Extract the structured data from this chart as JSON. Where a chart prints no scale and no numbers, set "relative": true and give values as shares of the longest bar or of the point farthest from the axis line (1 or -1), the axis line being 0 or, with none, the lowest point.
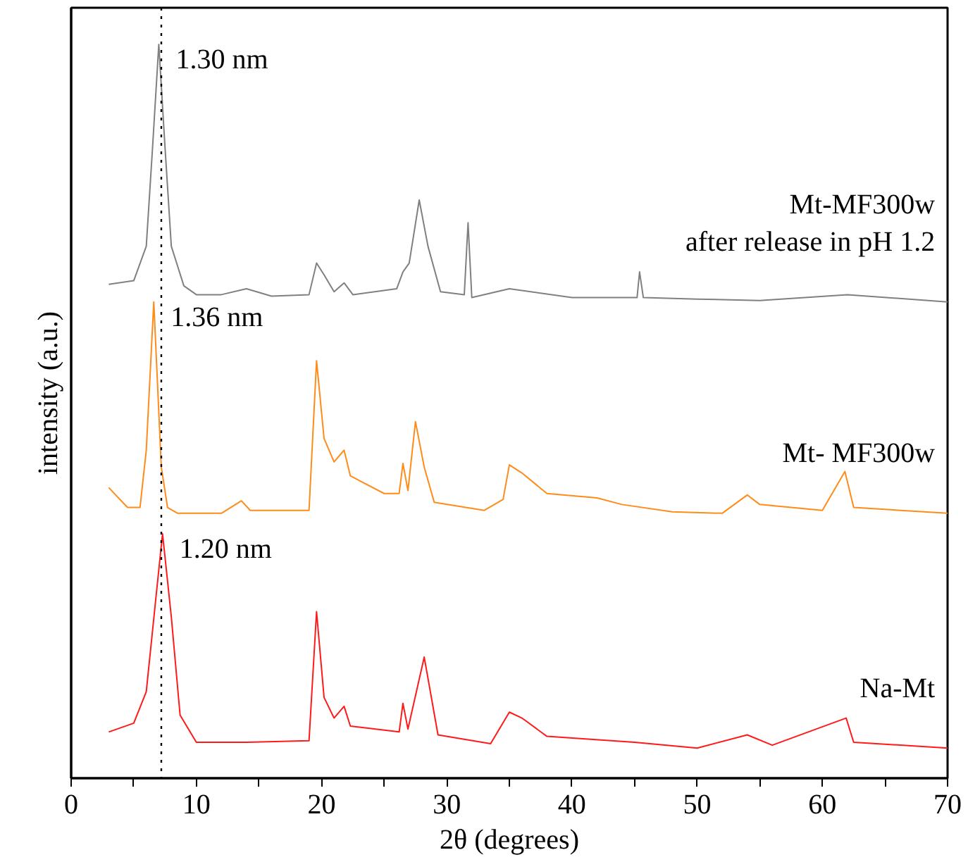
{
  "chart_data": {
    "type": "line",
    "relative": true,
    "xlabel": "2θ (degrees)",
    "ylabel": "intensity (a.u.)",
    "xlim": [
      0,
      70
    ],
    "xticks": [
      0,
      {
        "value": 5,
        "label": null
      },
      10,
      {
        "value": 15,
        "label": null
      },
      20,
      {
        "value": 25,
        "label": null
      },
      30,
      {
        "value": 35,
        "label": null
      },
      40,
      {
        "value": 45,
        "label": null
      },
      50,
      {
        "value": 55,
        "label": null
      },
      60,
      {
        "value": 65,
        "label": null
      },
      70
    ],
    "grid": false,
    "marker": "none",
    "line_style": "solid",
    "series": [
      {
        "name": "Mt-MF300w\nafter release in pH 1.2",
        "color": "#808080",
        "x": [
          3.0,
          5.0,
          6.0,
          6.5,
          7.0,
          7.5,
          8.0,
          9.0,
          10,
          12,
          14,
          16,
          19,
          19.6,
          20.2,
          21.0,
          21.8,
          22.5,
          26.0,
          26.5,
          27.0,
          27.8,
          28.5,
          29.5,
          31.4,
          31.7,
          32.0,
          35,
          40,
          45.2,
          45.4,
          45.7,
          50,
          55,
          62,
          70
        ],
        "values": [
          0.673,
          0.678,
          0.725,
          0.859,
          1.0,
          0.859,
          0.725,
          0.671,
          0.659,
          0.659,
          0.667,
          0.657,
          0.659,
          0.702,
          0.686,
          0.663,
          0.675,
          0.659,
          0.667,
          0.69,
          0.702,
          0.788,
          0.725,
          0.663,
          0.659,
          0.757,
          0.655,
          0.667,
          0.655,
          0.655,
          0.69,
          0.655,
          0.653,
          0.651,
          0.659,
          0.649
        ]
      },
      {
        "name": "Mt- MF300w",
        "color": "#ff8c1a",
        "x": [
          3.0,
          4.5,
          5.5,
          6.0,
          6.6,
          7.2,
          7.7,
          8.5,
          12,
          13.6,
          14.3,
          19.0,
          19.6,
          20.2,
          21.0,
          21.8,
          22.3,
          25,
          26.2,
          26.5,
          26.9,
          27.5,
          28.2,
          29,
          33,
          34.5,
          35.0,
          36.0,
          38,
          42,
          44,
          48,
          52,
          54,
          55,
          60,
          61.8,
          62.5,
          70
        ],
        "values": [
          0.396,
          0.369,
          0.369,
          0.447,
          0.649,
          0.424,
          0.369,
          0.361,
          0.361,
          0.378,
          0.365,
          0.365,
          0.569,
          0.463,
          0.431,
          0.447,
          0.412,
          0.388,
          0.388,
          0.429,
          0.392,
          0.486,
          0.424,
          0.376,
          0.365,
          0.38,
          0.427,
          0.416,
          0.388,
          0.382,
          0.373,
          0.363,
          0.361,
          0.386,
          0.373,
          0.365,
          0.418,
          0.369,
          0.361
        ]
      },
      {
        "name": "Na-Mt",
        "color": "#ff1a1a",
        "x": [
          3.0,
          5.0,
          6.0,
          6.8,
          7.3,
          8.0,
          8.7,
          10,
          14,
          19.0,
          19.6,
          20.2,
          21.0,
          21.8,
          22.3,
          26.2,
          26.5,
          26.9,
          28.2,
          29.3,
          33.5,
          35.0,
          36.0,
          38,
          45,
          50,
          54,
          56,
          61.9,
          62.5,
          70
        ],
        "values": [
          0.063,
          0.075,
          0.118,
          0.251,
          0.333,
          0.22,
          0.086,
          0.049,
          0.049,
          0.051,
          0.227,
          0.11,
          0.082,
          0.098,
          0.071,
          0.063,
          0.102,
          0.067,
          0.165,
          0.059,
          0.047,
          0.09,
          0.082,
          0.057,
          0.049,
          0.041,
          0.059,
          0.045,
          0.082,
          0.049,
          0.041
        ]
      }
    ],
    "ref_lines": [
      {
        "axis": "x",
        "value": 7.2,
        "color": "#000000",
        "line_style": "dotted"
      }
    ],
    "annotations": [
      {
        "text": "1.30 nm",
        "x": 7.0,
        "y": 1.0
      },
      {
        "text": "1.36 nm",
        "x": 6.6,
        "y": 0.649
      },
      {
        "text": "1.20 nm",
        "x": 7.3,
        "y": 0.333
      }
    ]
  }
}
